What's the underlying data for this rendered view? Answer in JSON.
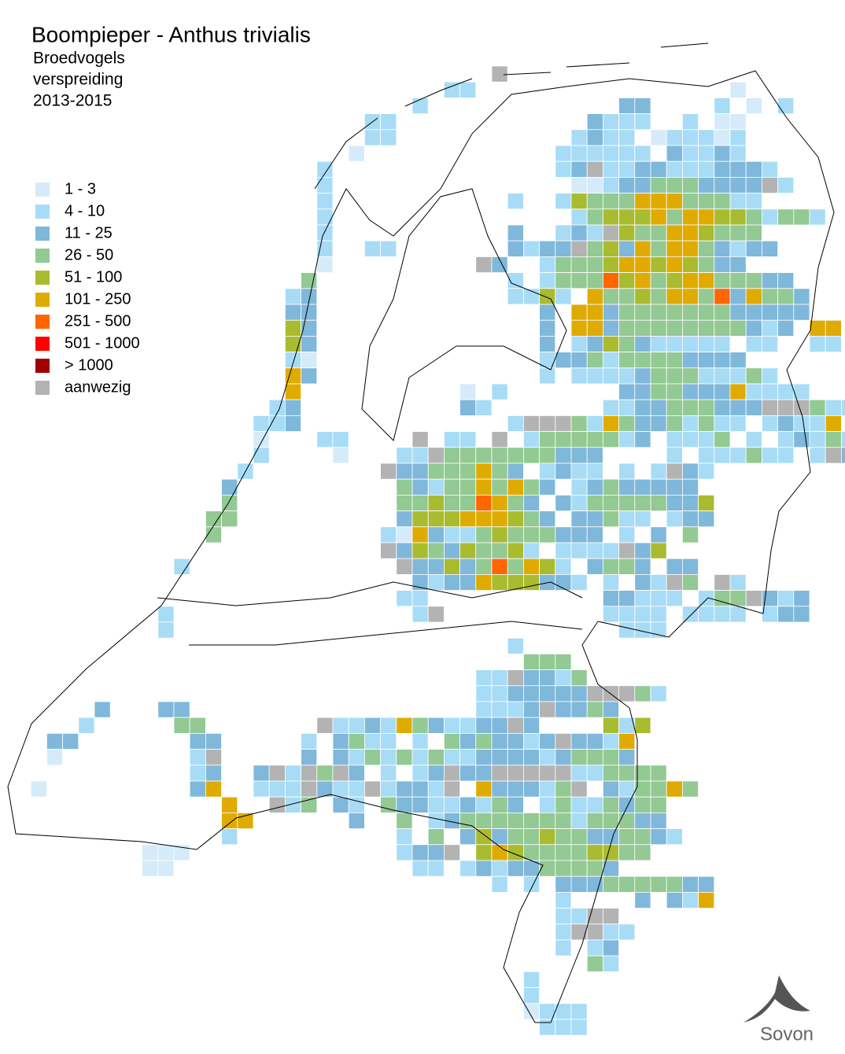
{
  "title": "Boompieper - Anthus trivialis",
  "subtitle": [
    "Broedvogels",
    "verspreiding",
    "2013-2015"
  ],
  "legend": [
    {
      "label": "1 - 3",
      "color": "#d5ebfa"
    },
    {
      "label": "4 - 10",
      "color": "#a8dcf6"
    },
    {
      "label": "11 - 25",
      "color": "#7fb8da"
    },
    {
      "label": "26 - 50",
      "color": "#93c993"
    },
    {
      "label": "51 - 100",
      "color": "#a9bb2f"
    },
    {
      "label": "101 - 250",
      "color": "#e0ab00"
    },
    {
      "label": "251 - 500",
      "color": "#ff6600"
    },
    {
      "label": "501 - 1000",
      "color": "#ff0000"
    },
    {
      "label": "> 1000",
      "color": "#a00000"
    },
    {
      "label": "aanwezig",
      "color": "#b3b3b3"
    }
  ],
  "logo": "Sovon"
}
